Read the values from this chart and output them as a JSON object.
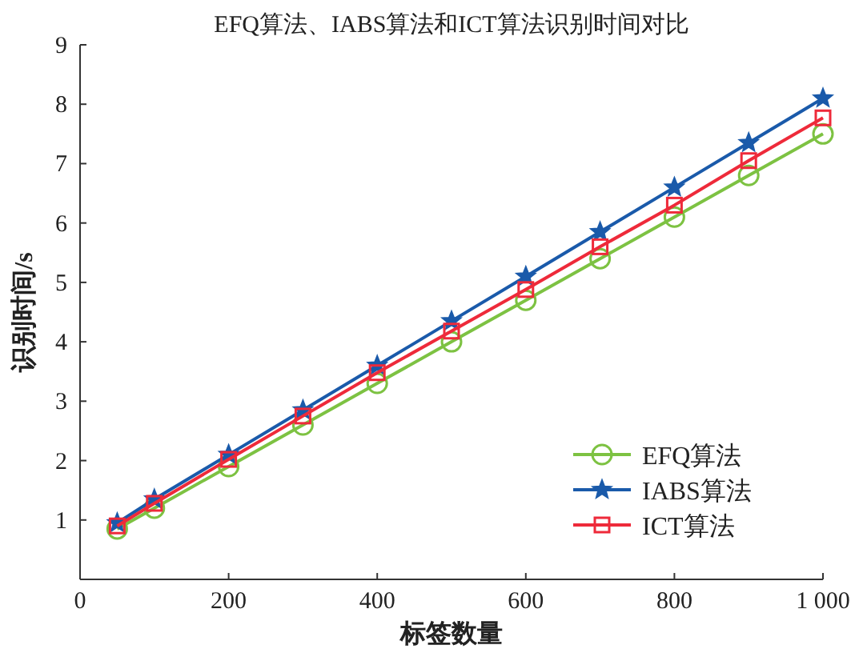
{
  "chart_data": {
    "type": "line",
    "title": "EFQ算法、IABS算法和ICT算法识别时间对比",
    "xlabel": "标签数量",
    "ylabel": "识别时间/s",
    "x": [
      50,
      100,
      200,
      300,
      400,
      500,
      600,
      700,
      800,
      900,
      1000
    ],
    "series": [
      {
        "name": "EFQ算法",
        "color": "#7dc242",
        "marker": "circle",
        "values": [
          0.85,
          1.2,
          1.9,
          2.6,
          3.3,
          4.0,
          4.7,
          5.4,
          6.1,
          6.8,
          7.5
        ]
      },
      {
        "name": "IABS算法",
        "color": "#1a5aaa",
        "marker": "star",
        "values": [
          0.95,
          1.35,
          2.1,
          2.85,
          3.6,
          4.35,
          5.1,
          5.85,
          6.6,
          7.35,
          8.1
        ]
      },
      {
        "name": "ICT算法",
        "color": "#ee2a3a",
        "marker": "square",
        "values": [
          0.9,
          1.28,
          2.02,
          2.75,
          3.48,
          4.18,
          4.88,
          5.6,
          6.3,
          7.05,
          7.77
        ]
      }
    ],
    "xlim": [
      0,
      1000
    ],
    "ylim": [
      0,
      9
    ],
    "xticks": [
      0,
      200,
      400,
      600,
      800,
      {
        "value": 1000,
        "label": "1 000"
      }
    ],
    "yticks": [
      1,
      2,
      3,
      4,
      5,
      6,
      7,
      8,
      9
    ],
    "legend": "bottom right",
    "line_style": "solid"
  }
}
